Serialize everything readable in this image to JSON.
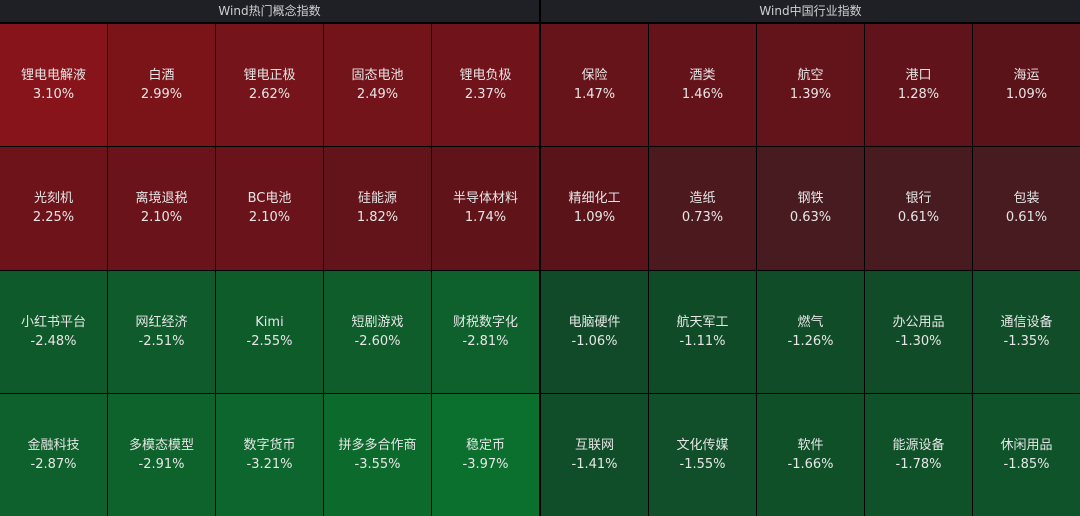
{
  "panels": [
    {
      "title": "Wind热门概念指数",
      "cells": [
        {
          "name": "锂电电解液",
          "change": "3.10%",
          "color": "#86141a"
        },
        {
          "name": "白酒",
          "change": "2.99%",
          "color": "#7a1419"
        },
        {
          "name": "锂电正极",
          "change": "2.62%",
          "color": "#75141a"
        },
        {
          "name": "固态电池",
          "change": "2.49%",
          "color": "#73131a"
        },
        {
          "name": "锂电负极",
          "change": "2.37%",
          "color": "#71131a"
        },
        {
          "name": "光刻机",
          "change": "2.25%",
          "color": "#6f131a"
        },
        {
          "name": "离境退税",
          "change": "2.10%",
          "color": "#6b131a"
        },
        {
          "name": "BC电池",
          "change": "2.10%",
          "color": "#6b131a"
        },
        {
          "name": "硅能源",
          "change": "1.82%",
          "color": "#63131a"
        },
        {
          "name": "半导体材料",
          "change": "1.74%",
          "color": "#61131a"
        },
        {
          "name": "小红书平台",
          "change": "-2.48%",
          "color": "#0f5a2b"
        },
        {
          "name": "网红经济",
          "change": "-2.51%",
          "color": "#0f5b2b"
        },
        {
          "name": "Kimi",
          "change": "-2.55%",
          "color": "#0f5c2b"
        },
        {
          "name": "短剧游戏",
          "change": "-2.60%",
          "color": "#0f5d2b"
        },
        {
          "name": "财税数字化",
          "change": "-2.81%",
          "color": "#0e602c"
        },
        {
          "name": "金融科技",
          "change": "-2.87%",
          "color": "#0e612c"
        },
        {
          "name": "多模态模型",
          "change": "-2.91%",
          "color": "#0e622c"
        },
        {
          "name": "数字货币",
          "change": "-3.21%",
          "color": "#0d662d"
        },
        {
          "name": "拼多多合作商",
          "change": "-3.55%",
          "color": "#0c6a2d"
        },
        {
          "name": "稳定币",
          "change": "-3.97%",
          "color": "#0b6f2e"
        }
      ]
    },
    {
      "title": "Wind中国行业指数",
      "cells": [
        {
          "name": "保险",
          "change": "1.47%",
          "color": "#66131a"
        },
        {
          "name": "酒类",
          "change": "1.46%",
          "color": "#65131a"
        },
        {
          "name": "航空",
          "change": "1.39%",
          "color": "#63131a"
        },
        {
          "name": "港口",
          "change": "1.28%",
          "color": "#60131a"
        },
        {
          "name": "海运",
          "change": "1.09%",
          "color": "#5b131a"
        },
        {
          "name": "精细化工",
          "change": "1.09%",
          "color": "#5b131a"
        },
        {
          "name": "造纸",
          "change": "0.73%",
          "color": "#4c1a1e"
        },
        {
          "name": "钢铁",
          "change": "0.63%",
          "color": "#471b1f"
        },
        {
          "name": "银行",
          "change": "0.61%",
          "color": "#471b1f"
        },
        {
          "name": "包装",
          "change": "0.61%",
          "color": "#471b1f"
        },
        {
          "name": "电脑硬件",
          "change": "-1.06%",
          "color": "#104a28"
        },
        {
          "name": "航天军工",
          "change": "-1.11%",
          "color": "#104b28"
        },
        {
          "name": "燃气",
          "change": "-1.26%",
          "color": "#104c28"
        },
        {
          "name": "办公用品",
          "change": "-1.30%",
          "color": "#104c28"
        },
        {
          "name": "通信设备",
          "change": "-1.35%",
          "color": "#104d28"
        },
        {
          "name": "互联网",
          "change": "-1.41%",
          "color": "#104d29"
        },
        {
          "name": "文化传媒",
          "change": "-1.55%",
          "color": "#104f29"
        },
        {
          "name": "软件",
          "change": "-1.66%",
          "color": "#0f5029"
        },
        {
          "name": "能源设备",
          "change": "-1.78%",
          "color": "#0f5229"
        },
        {
          "name": "休闲用品",
          "change": "-1.85%",
          "color": "#0f532a"
        }
      ]
    }
  ]
}
